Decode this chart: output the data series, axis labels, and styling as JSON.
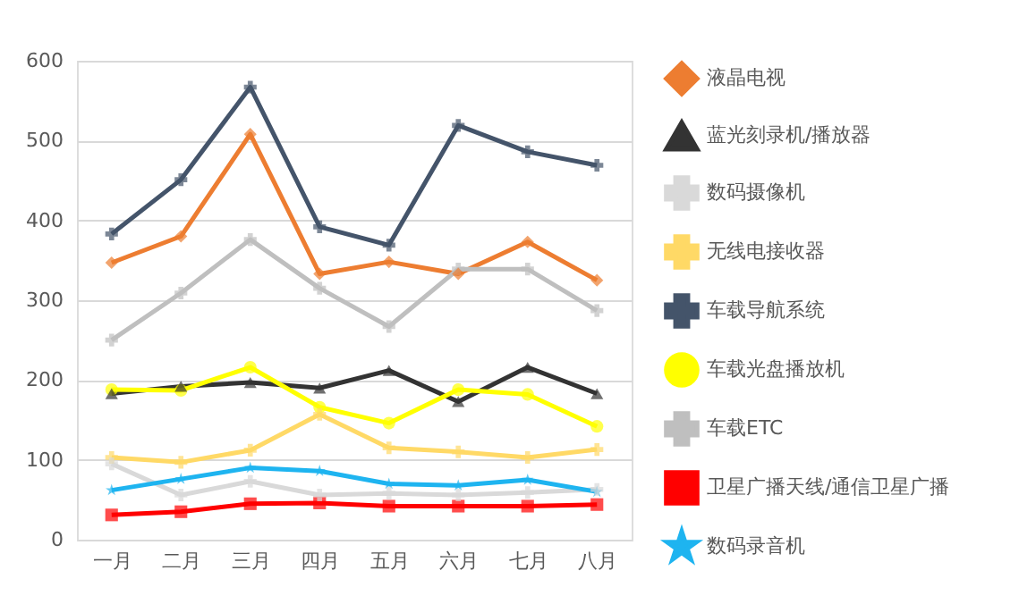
{
  "chart_data": {
    "type": "line",
    "categories": [
      "一月",
      "二月",
      "三月",
      "四月",
      "五月",
      "六月",
      "七月",
      "八月"
    ],
    "ylim": [
      0,
      600
    ],
    "yticks": [
      0,
      100,
      200,
      300,
      400,
      500,
      600
    ],
    "grid": "y",
    "legend": "right",
    "series": [
      {
        "name": "液晶电视",
        "color": "#ed7d31",
        "marker": "diamond",
        "values": [
          347,
          380,
          508,
          333,
          348,
          333,
          373,
          325
        ]
      },
      {
        "name": "蓝光刻录机/播放器",
        "color": "#333333",
        "marker": "triangle",
        "values": [
          183,
          192,
          197,
          190,
          212,
          173,
          216,
          183
        ]
      },
      {
        "name": "数码摄像机",
        "color": "#d9d9d9",
        "marker": "cross",
        "values": [
          95,
          56,
          73,
          56,
          58,
          56,
          59,
          63
        ]
      },
      {
        "name": "无线电接收器",
        "color": "#ffd966",
        "marker": "cross",
        "values": [
          103,
          97,
          112,
          157,
          115,
          110,
          103,
          113
        ]
      },
      {
        "name": "车载导航系统",
        "color": "#44546a",
        "marker": "cross",
        "values": [
          383,
          451,
          567,
          392,
          369,
          519,
          486,
          469
        ]
      },
      {
        "name": "车载光盘播放机",
        "color": "#ffff00",
        "marker": "circle",
        "values": [
          188,
          187,
          216,
          166,
          146,
          188,
          182,
          142
        ]
      },
      {
        "name": "车载ETC",
        "color": "#bfbfbf",
        "marker": "cross",
        "values": [
          250,
          309,
          376,
          315,
          267,
          339,
          339,
          287
        ]
      },
      {
        "name": "卫星广播天线/通信卫星广播",
        "color": "#ff0000",
        "marker": "square",
        "values": [
          31,
          35,
          45,
          46,
          42,
          42,
          42,
          44
        ]
      },
      {
        "name": "数码录音机",
        "color": "#1eb4f0",
        "marker": "star",
        "values": [
          62,
          76,
          90,
          86,
          70,
          68,
          75,
          60
        ]
      }
    ]
  }
}
